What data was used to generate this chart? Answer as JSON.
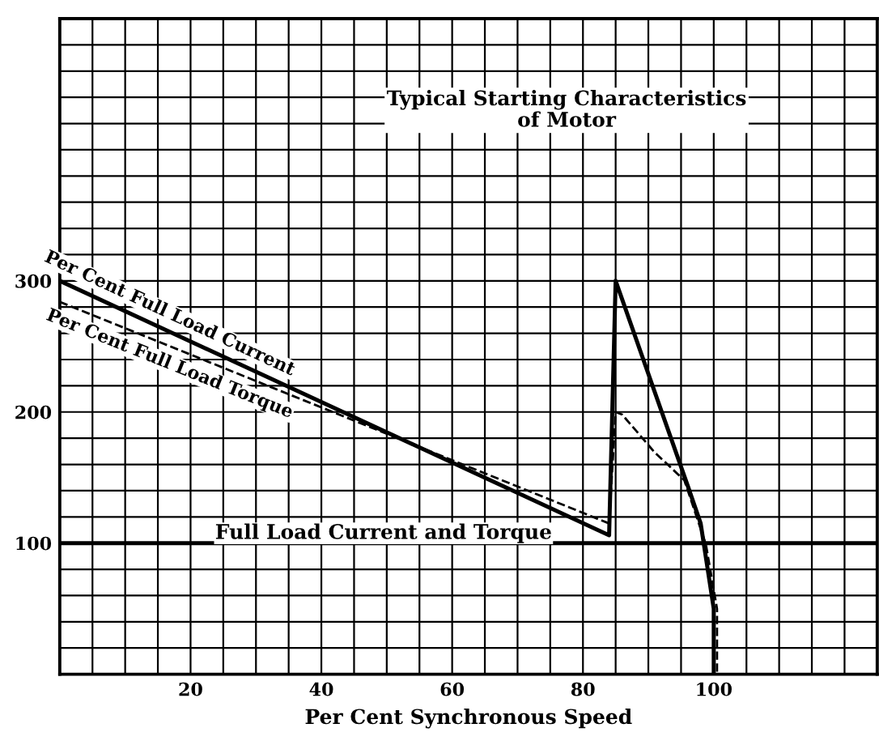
{
  "chart_data": {
    "type": "line",
    "title": "Typical Starting Characteristics\nof Motor",
    "xlabel": "Per Cent Synchronous Speed",
    "xlim": [
      0,
      125
    ],
    "ylim": [
      0,
      500
    ],
    "xticks": [
      {
        "value": 5,
        "label": null
      },
      {
        "value": 10,
        "label": null
      },
      {
        "value": 15,
        "label": null
      },
      20,
      {
        "value": 25,
        "label": null
      },
      {
        "value": 30,
        "label": null
      },
      {
        "value": 35,
        "label": null
      },
      40,
      {
        "value": 45,
        "label": null
      },
      {
        "value": 50,
        "label": null
      },
      {
        "value": 55,
        "label": null
      },
      60,
      {
        "value": 65,
        "label": null
      },
      {
        "value": 70,
        "label": null
      },
      {
        "value": 75,
        "label": null
      },
      80,
      {
        "value": 85,
        "label": null
      },
      {
        "value": 90,
        "label": null
      },
      {
        "value": 95,
        "label": null
      },
      100,
      {
        "value": 105,
        "label": null
      },
      {
        "value": 110,
        "label": null
      },
      {
        "value": 115,
        "label": null
      },
      {
        "value": 120,
        "label": null
      }
    ],
    "yticks": [
      {
        "value": 20,
        "label": null
      },
      {
        "value": 40,
        "label": null
      },
      {
        "value": 60,
        "label": null
      },
      {
        "value": 80,
        "label": null
      },
      100,
      {
        "value": 120,
        "label": null
      },
      {
        "value": 140,
        "label": null
      },
      {
        "value": 160,
        "label": null
      },
      {
        "value": 180,
        "label": null
      },
      200,
      {
        "value": 220,
        "label": null
      },
      {
        "value": 240,
        "label": null
      },
      {
        "value": 260,
        "label": null
      },
      {
        "value": 280,
        "label": null
      },
      300,
      {
        "value": 320,
        "label": null
      },
      {
        "value": 340,
        "label": null
      },
      {
        "value": 360,
        "label": null
      },
      {
        "value": 380,
        "label": null
      },
      {
        "value": 400,
        "label": null
      },
      {
        "value": 420,
        "label": null
      },
      {
        "value": 440,
        "label": null
      },
      {
        "value": 460,
        "label": null
      },
      {
        "value": 480,
        "label": null
      }
    ],
    "grid": true,
    "marker": "none",
    "ref_lines": [
      {
        "axis": "y",
        "value": 100,
        "label": "Full Load Current and Torque",
        "color": "#000000",
        "line_style": "solid"
      }
    ],
    "series": [
      {
        "name": "Per Cent Full Load Current",
        "color": "#000000",
        "line_style": "solid",
        "x": [
          0,
          84,
          85,
          96,
          98,
          100,
          100
        ],
        "values": [
          300,
          106,
          300,
          144,
          115,
          50,
          0
        ]
      },
      {
        "name": "Per Cent Full Load Torque",
        "color": "#000000",
        "line_style": "dashed",
        "x": [
          0,
          84,
          85,
          86,
          91,
          95.5,
          98.8,
          100.5,
          100.5
        ],
        "values": [
          284,
          115,
          200,
          198,
          169,
          148,
          99,
          50,
          0
        ]
      }
    ]
  }
}
